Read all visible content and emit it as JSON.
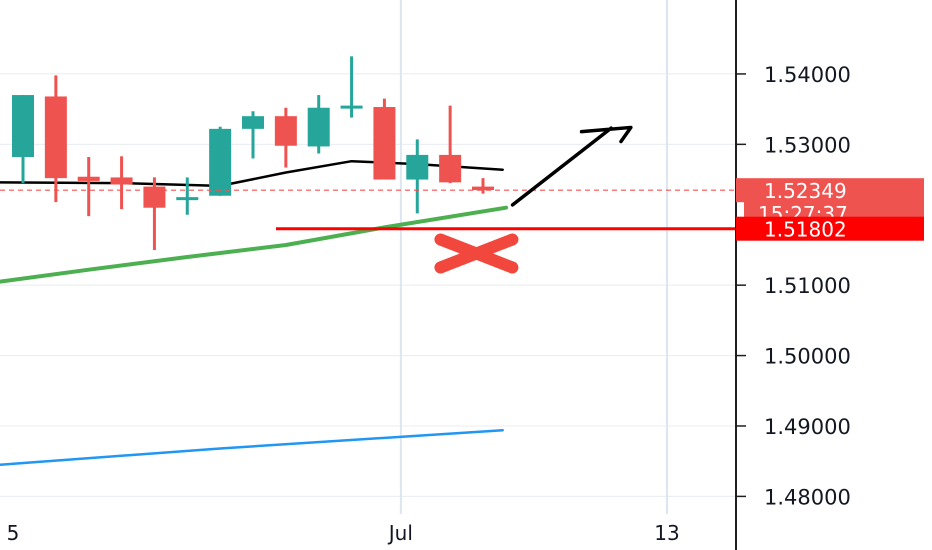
{
  "chart_data": {
    "type": "candlestick",
    "y_axis": {
      "ticks": [
        {
          "label": "1.54000",
          "value": 1.54
        },
        {
          "label": "1.53000",
          "value": 1.53
        },
        {
          "label": "1.51000",
          "value": 1.51
        },
        {
          "label": "1.50000",
          "value": 1.5
        },
        {
          "label": "1.49000",
          "value": 1.49
        },
        {
          "label": "1.48000",
          "value": 1.48
        }
      ],
      "range": [
        1.4775,
        1.5505
      ]
    },
    "x_axis": {
      "labels": [
        {
          "label": "5",
          "index": -0.5
        },
        {
          "label": "Jul",
          "index": 11.5
        },
        {
          "label": "13",
          "index": 19.6
        }
      ],
      "range": [
        -0.7,
        21.7
      ]
    },
    "candles": [
      {
        "i": 0,
        "o": 1.5282,
        "h": 1.537,
        "l": 1.5245,
        "c": 1.537
      },
      {
        "i": 1,
        "o": 1.5368,
        "h": 1.5398,
        "l": 1.5218,
        "c": 1.5252
      },
      {
        "i": 2,
        "o": 1.5254,
        "h": 1.5282,
        "l": 1.5198,
        "c": 1.5248
      },
      {
        "i": 3,
        "o": 1.5253,
        "h": 1.5283,
        "l": 1.5208,
        "c": 1.5243
      },
      {
        "i": 4,
        "o": 1.524,
        "h": 1.5253,
        "l": 1.515,
        "c": 1.521
      },
      {
        "i": 5,
        "o": 1.5225,
        "h": 1.5253,
        "l": 1.52,
        "c": 1.5225
      },
      {
        "i": 6,
        "o": 1.5227,
        "h": 1.5325,
        "l": 1.5227,
        "c": 1.5322
      },
      {
        "i": 7,
        "o": 1.5322,
        "h": 1.5347,
        "l": 1.528,
        "c": 1.534
      },
      {
        "i": 8,
        "o": 1.534,
        "h": 1.5352,
        "l": 1.5267,
        "c": 1.5298
      },
      {
        "i": 9,
        "o": 1.5297,
        "h": 1.537,
        "l": 1.5287,
        "c": 1.5352
      },
      {
        "i": 10,
        "o": 1.5355,
        "h": 1.5425,
        "l": 1.5338,
        "c": 1.5355
      },
      {
        "i": 11,
        "o": 1.5353,
        "h": 1.5365,
        "l": 1.525,
        "c": 1.525
      },
      {
        "i": 12,
        "o": 1.525,
        "h": 1.5307,
        "l": 1.5202,
        "c": 1.5285
      },
      {
        "i": 13,
        "o": 1.5285,
        "h": 1.5355,
        "l": 1.5245,
        "c": 1.5246
      },
      {
        "i": 14,
        "o": 1.524,
        "h": 1.5252,
        "l": 1.523,
        "c": 1.5235
      }
    ],
    "moving_averages": [
      {
        "color": "#000000",
        "points": [
          [
            -0.7,
            1.5246
          ],
          [
            3,
            1.5245
          ],
          [
            6,
            1.5241
          ],
          [
            8,
            1.526
          ],
          [
            10,
            1.5276
          ],
          [
            12,
            1.5272
          ],
          [
            14.6,
            1.5264
          ]
        ]
      },
      {
        "color": "#4caf50",
        "points": [
          [
            -0.7,
            1.5105
          ],
          [
            2,
            1.5122
          ],
          [
            5,
            1.514
          ],
          [
            8,
            1.5157
          ],
          [
            11,
            1.5182
          ],
          [
            14.7,
            1.521
          ]
        ]
      },
      {
        "color": "#2196f3",
        "points": [
          [
            -0.7,
            1.4845
          ],
          [
            6,
            1.4868
          ],
          [
            14.6,
            1.4894
          ]
        ]
      }
    ],
    "price_tags": [
      {
        "label": "1.52349",
        "value": 1.52349,
        "color": "#ef5350"
      },
      {
        "label": "15:27:37",
        "color": "#ef5350"
      },
      {
        "label": "1.51802",
        "value": 1.51802,
        "color": "#ff0000"
      }
    ],
    "horizontal_level": {
      "value": 1.51802,
      "from_index": 7.7,
      "color": "#ff0000"
    },
    "current_price_line": {
      "value": 1.52349,
      "color": "#ef5350"
    },
    "annotations": {
      "arrow": [
        [
          14.9,
          1.5214
        ],
        [
          17.9,
          1.5323
        ],
        [
          17.0,
          1.5318
        ],
        [
          18.5,
          1.5324
        ],
        [
          18.2,
          1.5304
        ]
      ],
      "cross": {
        "x": 13.8,
        "y": 1.5145
      }
    },
    "colors": {
      "up": "#26a69a",
      "down": "#ef5350",
      "grid": "#e8ecf0",
      "vline": "#dbe6f0",
      "axis": "#1f1f1f"
    }
  }
}
